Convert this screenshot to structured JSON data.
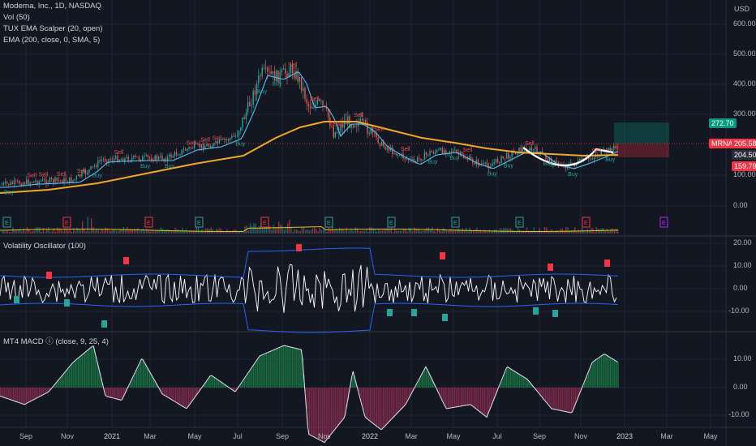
{
  "header": {
    "symbol_line": "Moderna, Inc., 1D, NASDAQ",
    "indicators": [
      "Vol (50)",
      "TUX EMA Scalper (20, open)",
      "EMA (200, close, 0, SMA, 5)"
    ],
    "currency": "USD"
  },
  "price_axis": {
    "ticks": [
      "600.00",
      "500.00",
      "400.00",
      "300.00",
      "100.00",
      "0.00"
    ]
  },
  "price_tags": [
    {
      "label": "272.70",
      "bg": "#089981",
      "fg": "#ffffff"
    },
    {
      "label": "MRNA",
      "bg": "#f23645",
      "fg": "#ffffff"
    },
    {
      "label": "205.58",
      "bg": "#f23645",
      "fg": "#ffffff"
    },
    {
      "label": "204.50",
      "bg": "#2a2e39",
      "fg": "#ffffff"
    },
    {
      "label": "159.79",
      "bg": "#f23645",
      "fg": "#ffffff"
    }
  ],
  "volatility_panel": {
    "title": "Volatility Oscillator (100)",
    "ticks": [
      "20.00",
      "10.00",
      "0.00",
      "-10.00"
    ]
  },
  "macd_panel": {
    "title": "MT4 MACD ⓘ (close, 9, 25, 4)",
    "ticks": [
      "10.00",
      "0.00",
      "-10.00"
    ]
  },
  "time_axis": {
    "labels": [
      "Sep",
      "Nov",
      "2021",
      "Mar",
      "May",
      "Jul",
      "Sep",
      "Nov",
      "2022",
      "Mar",
      "May",
      "Jul",
      "Sep",
      "Nov",
      "2023",
      "Mar",
      "May"
    ]
  },
  "event_markers": [
    "E",
    "E",
    "E",
    "E",
    "E",
    "E",
    "E",
    "E",
    "E",
    "E",
    "E"
  ],
  "colors": {
    "background": "#131722",
    "candle_up": "#26a69a",
    "candle_down": "#ef5350",
    "ema": "#f5a623",
    "tux": "#4fc3f7",
    "osc": "#ffffff",
    "band": "#2962ff"
  }
}
